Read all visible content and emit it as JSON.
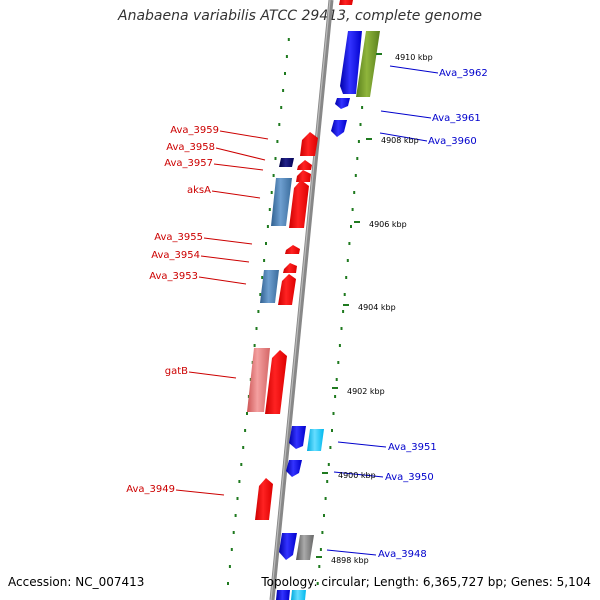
{
  "title": "Anabaena variabilis ATCC 29413, complete genome",
  "accession": "Accession: NC_007413",
  "topology": "Topology: circular; Length: 6,365,727 bp; Genes: 5,104",
  "colors": {
    "axis": "#999999",
    "tick": "#1f7a1f",
    "forward_label": "#cc0000",
    "reverse_label": "#0000cc",
    "label_text_kbp": "#000000"
  },
  "kbp_marks": [
    {
      "label": "4910 kbp",
      "position_kbp": 4910
    },
    {
      "label": "4908 kbp",
      "position_kbp": 4908
    },
    {
      "label": "4906 kbp",
      "position_kbp": 4906
    },
    {
      "label": "4904 kbp",
      "position_kbp": 4904
    },
    {
      "label": "4902 kbp",
      "position_kbp": 4902
    },
    {
      "label": "4900 kbp",
      "position_kbp": 4900
    },
    {
      "label": "4898 kbp",
      "position_kbp": 4898
    }
  ],
  "genes": [
    {
      "name": "Ava_3962",
      "strand": "reverse",
      "color": "#0000ee"
    },
    {
      "name": "Ava_3961",
      "strand": "reverse",
      "color": "#0000ee"
    },
    {
      "name": "Ava_3960",
      "strand": "reverse",
      "color": "#0000ee"
    },
    {
      "name": "Ava_3959",
      "strand": "forward",
      "color": "#ee0000"
    },
    {
      "name": "Ava_3958",
      "strand": "forward",
      "color": "#000066"
    },
    {
      "name": "Ava_3957",
      "strand": "forward",
      "color": "#ee0000"
    },
    {
      "name": "aksA",
      "strand": "forward",
      "color": "#ee0000"
    },
    {
      "name": "Ava_3955",
      "strand": "forward",
      "color": "#ee0000"
    },
    {
      "name": "Ava_3954",
      "strand": "forward",
      "color": "#ee0000"
    },
    {
      "name": "Ava_3953",
      "strand": "forward",
      "color": "#ee0000"
    },
    {
      "name": "gatB",
      "strand": "forward",
      "color": "#ee0000"
    },
    {
      "name": "Ava_3951",
      "strand": "reverse",
      "color": "#0000ee"
    },
    {
      "name": "Ava_3950",
      "strand": "reverse",
      "color": "#0000ee"
    },
    {
      "name": "Ava_3949",
      "strand": "forward",
      "color": "#ee0000"
    },
    {
      "name": "Ava_3948",
      "strand": "reverse",
      "color": "#0000ee"
    }
  ]
}
